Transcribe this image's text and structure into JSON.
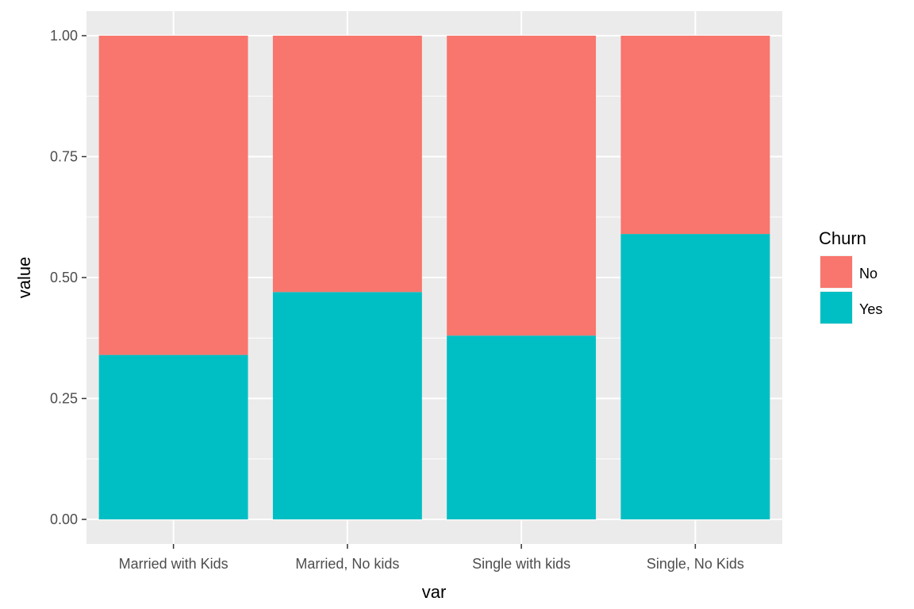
{
  "chart_data": {
    "type": "bar",
    "stacked": true,
    "title": "",
    "xlabel": "var",
    "ylabel": "value",
    "ylim": [
      0,
      1.05
    ],
    "yticks": [
      "0.00",
      "0.25",
      "0.50",
      "0.75",
      "1.00"
    ],
    "ytick_values": [
      0,
      0.25,
      0.5,
      0.75,
      1.0
    ],
    "categories": [
      "Married with Kids",
      "Married, No kids",
      "Single with kids",
      "Single, No Kids"
    ],
    "series": [
      {
        "name": "No",
        "values": [
          0.66,
          0.53,
          0.62,
          0.41
        ],
        "color": "#F8766D"
      },
      {
        "name": "Yes",
        "values": [
          0.34,
          0.47,
          0.38,
          0.59
        ],
        "color": "#00BFC4"
      }
    ],
    "grid": true,
    "panel_background": "#EBEBEB",
    "legend": {
      "title": "Churn",
      "position": "right",
      "entries": [
        "No",
        "Yes"
      ]
    }
  }
}
